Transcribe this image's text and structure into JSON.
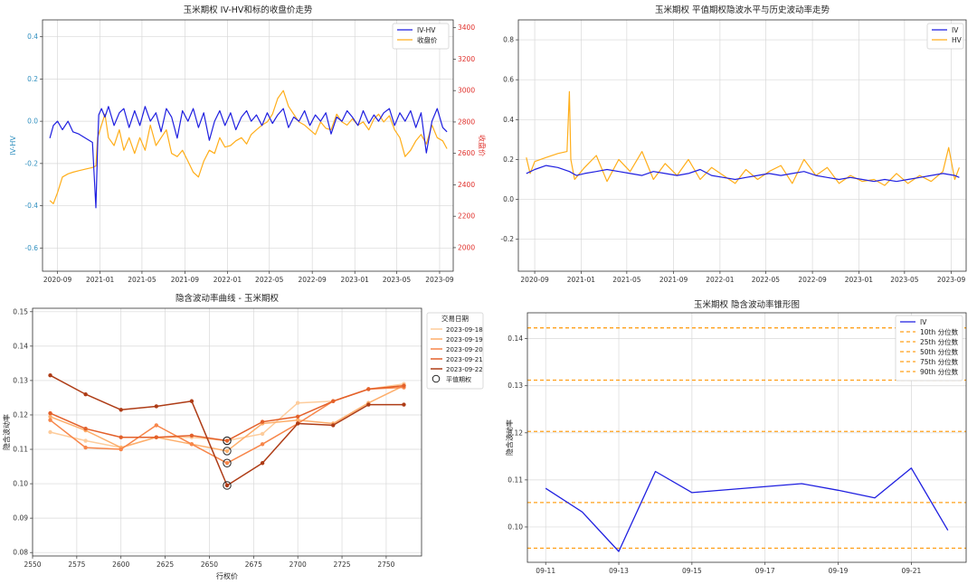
{
  "chart_data": [
    {
      "type": "line",
      "title": "玉米期权 IV-HV和标的收盘价走势",
      "xlabel": "",
      "ylabel": "IV-HV",
      "y2label": "收盘价",
      "xlim": [
        "2020-07-20",
        "2023-10-10"
      ],
      "ylim": [
        -0.71,
        0.48
      ],
      "y2lim": [
        1850,
        3450
      ],
      "xticks": [
        "2020-09",
        "2021-01",
        "2021-05",
        "2021-09",
        "2022-01",
        "2022-05",
        "2022-09",
        "2023-01",
        "2023-05",
        "2023-09"
      ],
      "yticks": [
        0.4,
        0.2,
        0.0,
        -0.2,
        -0.4,
        -0.6
      ],
      "ytick_labels": [
        "0.4",
        "0.2",
        "0.0",
        "-0.2",
        "-0.4",
        "-0.6"
      ],
      "y2ticks": [
        3400,
        3200,
        3000,
        2800,
        2600,
        2400,
        2200,
        2000
      ],
      "grid": true,
      "legend_position": "top-right",
      "colors": {
        "iv_hv": "#1f1fe0",
        "close": "#ffae1a",
        "left_axis": "#2f8fbf",
        "right_axis": "#e0302b"
      },
      "series": [
        {
          "name": "IV-HV",
          "axis": "left",
          "color": "#1f1fe0",
          "x": [
            "2020-08-10",
            "2020-08-20",
            "2020-09-01",
            "2020-09-15",
            "2020-10-01",
            "2020-10-15",
            "2020-11-01",
            "2020-11-20",
            "2020-12-10",
            "2020-12-20",
            "2020-12-25",
            "2020-12-28",
            "2021-01-05",
            "2021-01-15",
            "2021-01-25",
            "2021-02-10",
            "2021-02-25",
            "2021-03-10",
            "2021-03-25",
            "2021-04-10",
            "2021-04-25",
            "2021-05-10",
            "2021-05-25",
            "2021-06-10",
            "2021-06-25",
            "2021-07-10",
            "2021-07-25",
            "2021-08-10",
            "2021-08-25",
            "2021-09-10",
            "2021-09-25",
            "2021-10-10",
            "2021-10-25",
            "2021-11-10",
            "2021-11-25",
            "2021-12-10",
            "2021-12-25",
            "2022-01-10",
            "2022-01-25",
            "2022-02-10",
            "2022-02-25",
            "2022-03-10",
            "2022-03-25",
            "2022-04-10",
            "2022-04-25",
            "2022-05-10",
            "2022-05-25",
            "2022-06-10",
            "2022-06-25",
            "2022-07-10",
            "2022-07-25",
            "2022-08-10",
            "2022-08-25",
            "2022-09-10",
            "2022-09-25",
            "2022-10-10",
            "2022-10-25",
            "2022-11-10",
            "2022-11-25",
            "2022-12-10",
            "2022-12-25",
            "2023-01-10",
            "2023-01-25",
            "2023-02-10",
            "2023-02-25",
            "2023-03-10",
            "2023-03-25",
            "2023-04-10",
            "2023-04-25",
            "2023-05-10",
            "2023-05-25",
            "2023-06-10",
            "2023-06-25",
            "2023-07-10",
            "2023-07-25",
            "2023-08-10",
            "2023-08-25",
            "2023-09-10",
            "2023-09-22"
          ],
          "y": [
            -0.08,
            -0.02,
            0.0,
            -0.04,
            0.0,
            -0.05,
            -0.06,
            -0.08,
            -0.1,
            -0.41,
            -0.12,
            0.03,
            0.06,
            0.02,
            0.07,
            -0.02,
            0.04,
            0.06,
            -0.03,
            0.05,
            -0.02,
            0.07,
            0.0,
            0.04,
            -0.05,
            0.06,
            0.02,
            -0.08,
            0.05,
            0.0,
            0.06,
            -0.03,
            0.04,
            -0.09,
            0.0,
            0.05,
            -0.02,
            0.04,
            -0.04,
            0.02,
            0.05,
            0.0,
            0.03,
            -0.02,
            0.04,
            -0.01,
            0.03,
            0.06,
            -0.03,
            0.02,
            0.0,
            0.05,
            -0.02,
            0.03,
            0.0,
            0.04,
            -0.06,
            0.02,
            0.0,
            0.05,
            0.02,
            -0.02,
            0.05,
            -0.01,
            0.03,
            0.0,
            0.04,
            0.06,
            -0.02,
            0.04,
            0.0,
            0.05,
            -0.03,
            0.04,
            -0.15,
            0.0,
            0.06,
            -0.03,
            -0.05
          ]
        },
        {
          "name": "收盘价",
          "axis": "right",
          "color": "#ffae1a",
          "x": [
            "2020-08-10",
            "2020-08-20",
            "2020-09-01",
            "2020-09-15",
            "2020-10-01",
            "2020-10-15",
            "2020-11-01",
            "2020-11-20",
            "2020-12-10",
            "2020-12-20",
            "2020-12-25",
            "2021-01-05",
            "2021-01-15",
            "2021-01-25",
            "2021-02-10",
            "2021-02-25",
            "2021-03-10",
            "2021-03-25",
            "2021-04-10",
            "2021-04-25",
            "2021-05-10",
            "2021-05-25",
            "2021-06-10",
            "2021-06-25",
            "2021-07-10",
            "2021-07-25",
            "2021-08-10",
            "2021-08-25",
            "2021-09-10",
            "2021-09-25",
            "2021-10-10",
            "2021-10-25",
            "2021-11-10",
            "2021-11-25",
            "2021-12-10",
            "2021-12-25",
            "2022-01-10",
            "2022-01-25",
            "2022-02-10",
            "2022-02-25",
            "2022-03-10",
            "2022-03-25",
            "2022-04-10",
            "2022-04-25",
            "2022-05-10",
            "2022-05-25",
            "2022-06-10",
            "2022-06-25",
            "2022-07-10",
            "2022-07-25",
            "2022-08-10",
            "2022-08-25",
            "2022-09-10",
            "2022-09-25",
            "2022-10-10",
            "2022-10-25",
            "2022-11-10",
            "2022-11-25",
            "2022-12-10",
            "2022-12-25",
            "2023-01-10",
            "2023-01-25",
            "2023-02-10",
            "2023-02-25",
            "2023-03-10",
            "2023-03-25",
            "2023-04-10",
            "2023-04-25",
            "2023-05-10",
            "2023-05-25",
            "2023-06-10",
            "2023-06-25",
            "2023-07-10",
            "2023-07-25",
            "2023-08-10",
            "2023-08-25",
            "2023-09-10",
            "2023-09-22"
          ],
          "y": [
            2300,
            2280,
            2350,
            2450,
            2470,
            2480,
            2490,
            2500,
            2510,
            2520,
            2700,
            2780,
            2850,
            2700,
            2650,
            2750,
            2620,
            2700,
            2600,
            2700,
            2620,
            2780,
            2650,
            2700,
            2750,
            2600,
            2580,
            2620,
            2550,
            2480,
            2450,
            2550,
            2620,
            2600,
            2700,
            2640,
            2650,
            2680,
            2700,
            2660,
            2720,
            2750,
            2780,
            2800,
            2850,
            2950,
            3000,
            2900,
            2850,
            2800,
            2780,
            2750,
            2720,
            2800,
            2760,
            2750,
            2850,
            2800,
            2780,
            2820,
            2780,
            2800,
            2750,
            2820,
            2850,
            2800,
            2840,
            2750,
            2700,
            2580,
            2620,
            2680,
            2720,
            2660,
            2780,
            2700,
            2680,
            2630
          ]
        }
      ]
    },
    {
      "type": "line",
      "title": "玉米期权 平值期权隐波水平与历史波动率走势",
      "xlabel": "",
      "ylabel": "",
      "xlim": [
        "2020-07-20",
        "2023-10-10"
      ],
      "ylim": [
        -0.36,
        0.9
      ],
      "xticks": [
        "2020-09",
        "2021-01",
        "2021-05",
        "2021-09",
        "2022-01",
        "2022-05",
        "2022-09",
        "2023-01",
        "2023-05",
        "2023-09"
      ],
      "yticks": [
        0.8,
        0.6,
        0.4,
        0.2,
        0.0,
        -0.2
      ],
      "ytick_labels": [
        "0.8",
        "0.6",
        "0.4",
        "0.2",
        "0.0",
        "-0.2"
      ],
      "grid": true,
      "legend_position": "top-right",
      "series": [
        {
          "name": "IV",
          "color": "#1f1fe0",
          "x": [
            "2020-08-10",
            "2020-09-01",
            "2020-10-01",
            "2020-11-01",
            "2020-12-01",
            "2020-12-20",
            "2021-01-10",
            "2021-02-10",
            "2021-03-10",
            "2021-04-10",
            "2021-05-10",
            "2021-06-10",
            "2021-07-10",
            "2021-08-10",
            "2021-09-10",
            "2021-10-10",
            "2021-11-10",
            "2021-12-10",
            "2022-01-10",
            "2022-02-10",
            "2022-03-10",
            "2022-04-10",
            "2022-05-10",
            "2022-06-10",
            "2022-07-10",
            "2022-08-10",
            "2022-09-10",
            "2022-10-10",
            "2022-11-10",
            "2022-12-10",
            "2023-01-10",
            "2023-02-10",
            "2023-03-10",
            "2023-04-10",
            "2023-05-10",
            "2023-06-10",
            "2023-07-10",
            "2023-08-10",
            "2023-09-10",
            "2023-09-22"
          ],
          "y": [
            0.13,
            0.15,
            0.17,
            0.16,
            0.14,
            0.12,
            0.13,
            0.14,
            0.15,
            0.14,
            0.13,
            0.12,
            0.14,
            0.13,
            0.12,
            0.13,
            0.15,
            0.12,
            0.11,
            0.1,
            0.11,
            0.12,
            0.13,
            0.12,
            0.13,
            0.14,
            0.12,
            0.11,
            0.1,
            0.11,
            0.1,
            0.09,
            0.1,
            0.09,
            0.1,
            0.11,
            0.12,
            0.13,
            0.12,
            0.11
          ]
        },
        {
          "name": "HV",
          "color": "#ffae1a",
          "x": [
            "2020-08-10",
            "2020-08-20",
            "2020-09-01",
            "2020-10-01",
            "2020-11-01",
            "2020-11-25",
            "2020-12-01",
            "2020-12-05",
            "2020-12-15",
            "2021-01-10",
            "2021-02-10",
            "2021-03-10",
            "2021-04-10",
            "2021-05-10",
            "2021-06-10",
            "2021-07-10",
            "2021-08-10",
            "2021-09-10",
            "2021-10-10",
            "2021-11-10",
            "2021-12-10",
            "2022-01-10",
            "2022-02-10",
            "2022-03-10",
            "2022-04-10",
            "2022-05-10",
            "2022-06-10",
            "2022-07-10",
            "2022-08-10",
            "2022-09-10",
            "2022-10-10",
            "2022-11-10",
            "2022-12-10",
            "2023-01-10",
            "2023-02-10",
            "2023-03-10",
            "2023-04-10",
            "2023-05-10",
            "2023-06-10",
            "2023-07-10",
            "2023-08-10",
            "2023-08-25",
            "2023-09-10",
            "2023-09-22"
          ],
          "y": [
            0.21,
            0.13,
            0.19,
            0.21,
            0.23,
            0.24,
            0.54,
            0.2,
            0.1,
            0.16,
            0.22,
            0.09,
            0.2,
            0.14,
            0.24,
            0.1,
            0.18,
            0.12,
            0.2,
            0.1,
            0.16,
            0.12,
            0.08,
            0.15,
            0.1,
            0.14,
            0.17,
            0.08,
            0.2,
            0.12,
            0.16,
            0.08,
            0.12,
            0.09,
            0.1,
            0.07,
            0.13,
            0.08,
            0.12,
            0.09,
            0.14,
            0.26,
            0.1,
            0.16
          ]
        }
      ]
    },
    {
      "type": "line",
      "title": "隐含波动率曲线 - 玉米期权",
      "xlabel": "行权价",
      "ylabel": "隐含波动率",
      "xlim": [
        2550,
        2770
      ],
      "ylim": [
        0.079,
        0.151
      ],
      "xticks": [
        2550,
        2575,
        2600,
        2625,
        2650,
        2675,
        2700,
        2725,
        2750
      ],
      "yticks": [
        0.15,
        0.14,
        0.13,
        0.12,
        0.11,
        0.1,
        0.09,
        0.08
      ],
      "ytick_labels": [
        "0.15",
        "0.14",
        "0.13",
        "0.12",
        "0.11",
        "0.10",
        "0.09",
        "0.08"
      ],
      "grid": true,
      "legend_title": "交易日期",
      "legend_position": "outside right",
      "x": [
        2560,
        2580,
        2600,
        2620,
        2640,
        2660,
        2680,
        2700,
        2720,
        2740,
        2760
      ],
      "atm_strike": 2660,
      "atm_label": "平值期权",
      "series": [
        {
          "name": "2023-09-18",
          "color": "#fdcc9c",
          "values": [
            0.115,
            0.1125,
            0.1105,
            0.1135,
            0.1135,
            0.1125,
            0.1145,
            0.1235,
            0.124,
            0.1275,
            0.129
          ]
        },
        {
          "name": "2023-09-19",
          "color": "#fdae6b",
          "values": [
            0.1195,
            0.1155,
            0.1105,
            0.1135,
            0.1115,
            0.1095,
            0.1175,
            0.1185,
            0.1175,
            0.1235,
            0.1285
          ]
        },
        {
          "name": "2023-09-20",
          "color": "#f7864a",
          "values": [
            0.1185,
            0.1105,
            0.11,
            0.117,
            0.1115,
            0.106,
            0.1115,
            0.1175,
            0.124,
            0.1275,
            0.128
          ]
        },
        {
          "name": "2023-09-21",
          "color": "#e3602a",
          "values": [
            0.1205,
            0.116,
            0.1135,
            0.1135,
            0.114,
            0.1125,
            0.118,
            0.1195,
            0.124,
            0.1275,
            0.1285
          ]
        },
        {
          "name": "2023-09-22",
          "color": "#ae3c16",
          "values": [
            0.1315,
            0.126,
            0.1215,
            0.1225,
            0.124,
            0.0995,
            0.106,
            0.1175,
            0.117,
            0.123,
            0.123
          ]
        }
      ]
    },
    {
      "type": "line",
      "title": "玉米期权 隐含波动率锥形图",
      "xlabel": "",
      "ylabel": "隐含波动率",
      "xlim": [
        "2023-09-10 12:00",
        "2023-09-22 12:00"
      ],
      "ylim": [
        0.0925,
        0.1455
      ],
      "xticks": [
        "09-11",
        "09-13",
        "09-15",
        "09-17",
        "09-19",
        "09-21"
      ],
      "yticks": [
        0.14,
        0.13,
        0.12,
        0.11,
        0.1
      ],
      "ytick_labels": [
        "0.14",
        "0.13",
        "0.12",
        "0.11",
        "0.10"
      ],
      "grid": true,
      "legend_position": "top-right",
      "series": [
        {
          "name": "IV",
          "color": "#1f1fe0",
          "x": [
            "2023-09-11",
            "2023-09-12",
            "2023-09-13",
            "2023-09-14",
            "2023-09-15",
            "2023-09-18",
            "2023-09-19",
            "2023-09-20",
            "2023-09-21",
            "2023-09-22"
          ],
          "y": [
            0.1082,
            0.1032,
            0.0948,
            0.1118,
            0.1073,
            0.1092,
            0.1078,
            0.1062,
            0.1125,
            0.0993
          ]
        }
      ],
      "quantiles": [
        {
          "name": "10th 分位数",
          "value": 0.0955,
          "color": "#ffa01a"
        },
        {
          "name": "25th 分位数",
          "value": 0.1052,
          "color": "#ffa01a"
        },
        {
          "name": "50th 分位数",
          "value": 0.1203,
          "color": "#ffa01a"
        },
        {
          "name": "75th 分位数",
          "value": 0.1312,
          "color": "#ffa01a"
        },
        {
          "name": "90th 分位数",
          "value": 0.1423,
          "color": "#ffa01a"
        }
      ]
    }
  ]
}
